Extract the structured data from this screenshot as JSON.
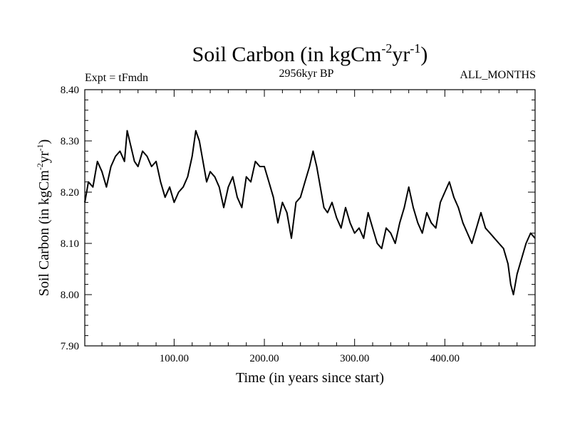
{
  "chart_data": {
    "type": "line",
    "title": "Soil Carbon (in kgCm",
    "title_sup1": "-2",
    "title_mid": "yr",
    "title_sup2": "-1",
    "title_end": ")",
    "subtitle_left": "Expt = tFmdn",
    "subtitle_center": "2956kyr BP",
    "subtitle_right": "ALL_MONTHS",
    "xlabel": "Time (in years since start)",
    "ylabel": "Soil Carbon (in kgCm",
    "ylabel_sup1": "-2",
    "ylabel_mid": "yr",
    "ylabel_sup2": "-1",
    "ylabel_end": ")",
    "xlim": [
      1,
      500
    ],
    "ylim": [
      7.9,
      8.4
    ],
    "x_ticks": [
      100,
      200,
      300,
      400
    ],
    "x_tick_labels": [
      "100.00",
      "200.00",
      "300.00",
      "400.00"
    ],
    "y_ticks": [
      7.9,
      8.0,
      8.1,
      8.2,
      8.3,
      8.4
    ],
    "y_tick_labels": [
      "7.90",
      "8.00",
      "8.10",
      "8.20",
      "8.30",
      "8.40"
    ],
    "series": [
      {
        "name": "Soil Carbon",
        "color": "#000000",
        "x": [
          1,
          5,
          10,
          15,
          20,
          25,
          30,
          35,
          40,
          45,
          48,
          52,
          56,
          60,
          65,
          70,
          75,
          80,
          85,
          90,
          95,
          100,
          105,
          110,
          115,
          120,
          124,
          128,
          132,
          136,
          140,
          145,
          150,
          155,
          160,
          165,
          170,
          175,
          180,
          185,
          190,
          195,
          200,
          205,
          210,
          215,
          220,
          225,
          230,
          235,
          240,
          245,
          250,
          254,
          258,
          262,
          266,
          270,
          275,
          280,
          285,
          290,
          295,
          300,
          305,
          310,
          315,
          320,
          325,
          330,
          335,
          340,
          345,
          350,
          355,
          360,
          365,
          370,
          375,
          380,
          385,
          390,
          395,
          400,
          405,
          410,
          415,
          420,
          425,
          430,
          435,
          440,
          445,
          450,
          455,
          460,
          465,
          470,
          473,
          476,
          480,
          485,
          490,
          495,
          500
        ],
        "y": [
          8.18,
          8.22,
          8.21,
          8.26,
          8.24,
          8.21,
          8.25,
          8.27,
          8.28,
          8.26,
          8.32,
          8.29,
          8.26,
          8.25,
          8.28,
          8.27,
          8.25,
          8.26,
          8.22,
          8.19,
          8.21,
          8.18,
          8.2,
          8.21,
          8.23,
          8.27,
          8.32,
          8.3,
          8.26,
          8.22,
          8.24,
          8.23,
          8.21,
          8.17,
          8.21,
          8.23,
          8.19,
          8.17,
          8.23,
          8.22,
          8.26,
          8.25,
          8.25,
          8.22,
          8.19,
          8.14,
          8.18,
          8.16,
          8.11,
          8.18,
          8.19,
          8.22,
          8.25,
          8.28,
          8.25,
          8.21,
          8.17,
          8.16,
          8.18,
          8.15,
          8.13,
          8.17,
          8.14,
          8.12,
          8.13,
          8.11,
          8.16,
          8.13,
          8.1,
          8.09,
          8.13,
          8.12,
          8.1,
          8.14,
          8.17,
          8.21,
          8.17,
          8.14,
          8.12,
          8.16,
          8.14,
          8.13,
          8.18,
          8.2,
          8.22,
          8.19,
          8.17,
          8.14,
          8.12,
          8.1,
          8.13,
          8.16,
          8.13,
          8.12,
          8.11,
          8.1,
          8.09,
          8.06,
          8.02,
          8.0,
          8.04,
          8.07,
          8.1,
          8.12,
          8.11
        ]
      }
    ]
  }
}
